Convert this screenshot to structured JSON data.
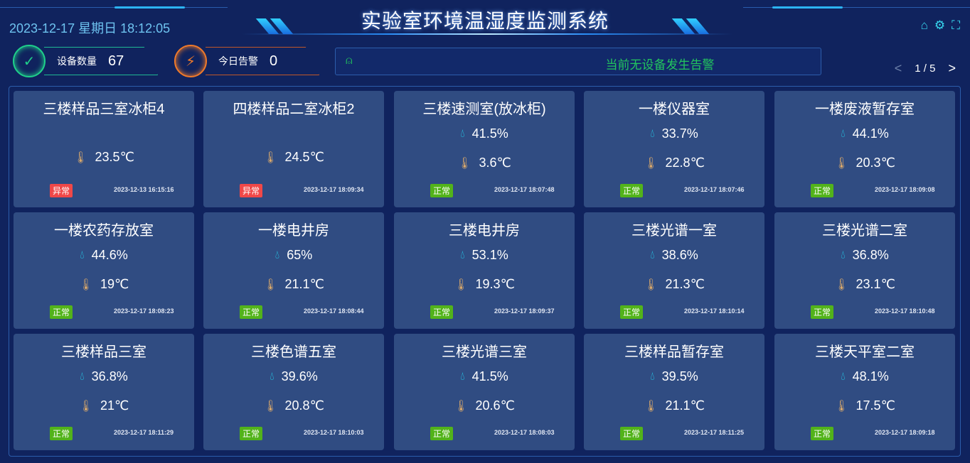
{
  "header": {
    "datetime": "2023-12-17 星期日 18:12:05",
    "title": "实验室环境温湿度监测系统",
    "icons": [
      "home-icon",
      "gear-icon",
      "fullscreen-icon"
    ]
  },
  "stats": {
    "devices": {
      "label": "设备数量",
      "value": "67",
      "color": "#1fd08a"
    },
    "alarms": {
      "label": "今日告警",
      "value": "0",
      "color": "#f07a2a"
    }
  },
  "alert": {
    "text": "当前无设备发生告警",
    "icon": "alarm-light-icon",
    "color": "#22c55e"
  },
  "pager": {
    "text": "1 / 5"
  },
  "colors": {
    "normal": "#52b31a",
    "abnormal": "#f04848",
    "card": "#304c82",
    "humidity_icon": "#22d3ee"
  },
  "cards": [
    {
      "name": "三楼样品三室冰柜4",
      "humidity": null,
      "temp": "23.5℃",
      "status": "异常",
      "time": "2023-12-13 16:15:16"
    },
    {
      "name": "四楼样品二室冰柜2",
      "humidity": null,
      "temp": "24.5℃",
      "status": "异常",
      "time": "2023-12-17 18:09:34"
    },
    {
      "name": "三楼速测室(放冰柜)",
      "humidity": "41.5%",
      "temp": "3.6℃",
      "status": "正常",
      "time": "2023-12-17 18:07:48"
    },
    {
      "name": "一楼仪器室",
      "humidity": "33.7%",
      "temp": "22.8℃",
      "status": "正常",
      "time": "2023-12-17 18:07:46"
    },
    {
      "name": "一楼废液暂存室",
      "humidity": "44.1%",
      "temp": "20.3℃",
      "status": "正常",
      "time": "2023-12-17 18:09:08"
    },
    {
      "name": "一楼农药存放室",
      "humidity": "44.6%",
      "temp": "19℃",
      "status": "正常",
      "time": "2023-12-17 18:08:23"
    },
    {
      "name": "一楼电井房",
      "humidity": "65%",
      "temp": "21.1℃",
      "status": "正常",
      "time": "2023-12-17 18:08:44"
    },
    {
      "name": "三楼电井房",
      "humidity": "53.1%",
      "temp": "19.3℃",
      "status": "正常",
      "time": "2023-12-17 18:09:37"
    },
    {
      "name": "三楼光谱一室",
      "humidity": "38.6%",
      "temp": "21.3℃",
      "status": "正常",
      "time": "2023-12-17 18:10:14"
    },
    {
      "name": "三楼光谱二室",
      "humidity": "36.8%",
      "temp": "23.1℃",
      "status": "正常",
      "time": "2023-12-17 18:10:48"
    },
    {
      "name": "三楼样品三室",
      "humidity": "36.8%",
      "temp": "21℃",
      "status": "正常",
      "time": "2023-12-17 18:11:29"
    },
    {
      "name": "三楼色谱五室",
      "humidity": "39.6%",
      "temp": "20.8℃",
      "status": "正常",
      "time": "2023-12-17 18:10:03"
    },
    {
      "name": "三楼光谱三室",
      "humidity": "41.5%",
      "temp": "20.6℃",
      "status": "正常",
      "time": "2023-12-17 18:08:03"
    },
    {
      "name": "三楼样品暂存室",
      "humidity": "39.5%",
      "temp": "21.1℃",
      "status": "正常",
      "time": "2023-12-17 18:11:25"
    },
    {
      "name": "三楼天平室二室",
      "humidity": "48.1%",
      "temp": "17.5℃",
      "status": "正常",
      "time": "2023-12-17 18:09:18"
    }
  ]
}
